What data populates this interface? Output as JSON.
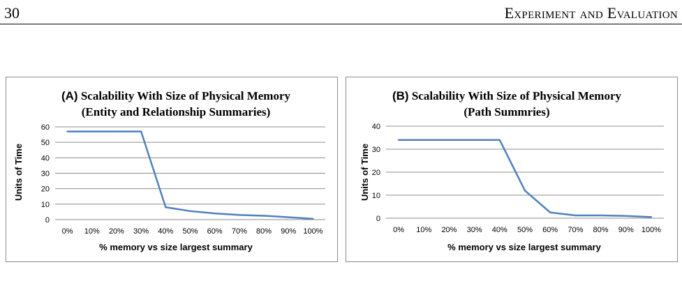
{
  "header": {
    "page_number": "30",
    "chapter_title": "Experiment and Evaluation"
  },
  "chart_data": [
    {
      "type": "line",
      "title_prefix": "(A)",
      "title_line1": "Scalability With Size of Physical Memory",
      "title_line2": "(Entity and Relationship Summaries)",
      "xlabel": "% memory vs size largest  summary",
      "ylabel": "Units of Time",
      "categories": [
        "0%",
        "10%",
        "20%",
        "30%",
        "40%",
        "50%",
        "60%",
        "70%",
        "80%",
        "90%",
        "100%"
      ],
      "values": [
        57,
        57,
        57,
        57,
        8,
        5.5,
        4,
        3,
        2.5,
        1.5,
        0.5
      ],
      "yticks": [
        0,
        10,
        20,
        30,
        40,
        50,
        60
      ],
      "ylim": [
        0,
        60
      ],
      "grid": true,
      "line_color": "#4f81bd"
    },
    {
      "type": "line",
      "title_prefix": "(B)",
      "title_line1": "Scalability With Size of Physical Memory",
      "title_line2": "(Path Summries)",
      "xlabel": "% memory vs size largest summary",
      "ylabel": "Units of Time",
      "categories": [
        "0%",
        "10%",
        "20%",
        "30%",
        "40%",
        "50%",
        "60%",
        "70%",
        "80%",
        "90%",
        "100%"
      ],
      "values": [
        34,
        34,
        34,
        34,
        34,
        12,
        2.5,
        1.2,
        1.2,
        1,
        0.5
      ],
      "yticks": [
        0,
        10,
        20,
        30,
        40
      ],
      "ylim": [
        0,
        40
      ],
      "grid": true,
      "line_color": "#4f81bd"
    }
  ]
}
